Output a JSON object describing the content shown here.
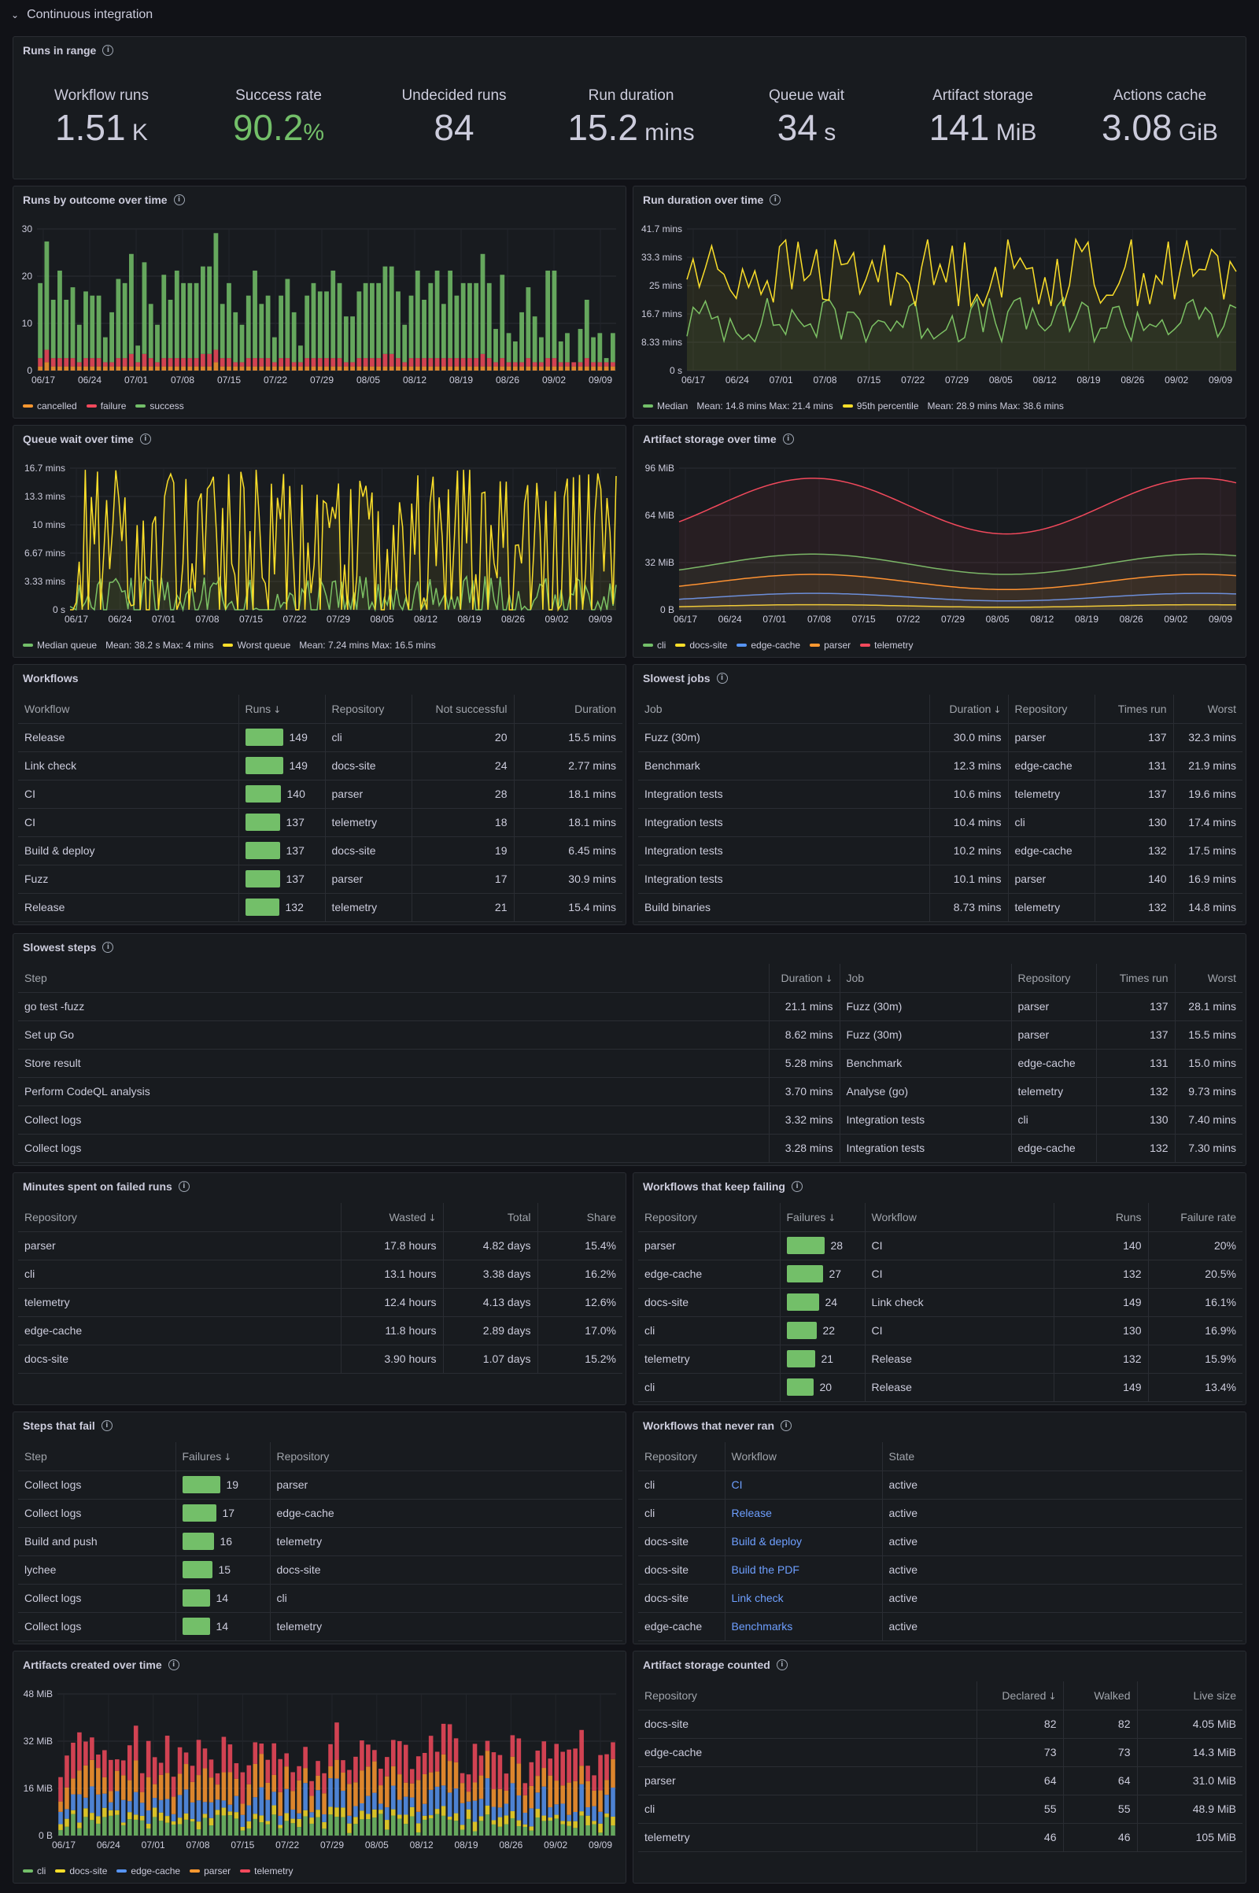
{
  "row": {
    "title": "Continuous integration"
  },
  "runs_in_range": {
    "title": "Runs in range",
    "stats": [
      {
        "label": "Workflow runs",
        "value": "1.51",
        "unit": "K",
        "color": "#ccccdc"
      },
      {
        "label": "Success rate",
        "value": "90.2",
        "unit": "%",
        "color": "#73bf69"
      },
      {
        "label": "Undecided runs",
        "value": "84",
        "unit": "",
        "color": "#ccccdc"
      },
      {
        "label": "Run duration",
        "value": "15.2",
        "unit": "mins",
        "color": "#ccccdc"
      },
      {
        "label": "Queue wait",
        "value": "34",
        "unit": "s",
        "color": "#ccccdc"
      },
      {
        "label": "Artifact storage",
        "value": "141",
        "unit": "MiB",
        "color": "#ccccdc"
      },
      {
        "label": "Actions cache",
        "value": "3.08",
        "unit": "GiB",
        "color": "#ccccdc"
      }
    ]
  },
  "x_dates": [
    "06/17",
    "06/24",
    "07/01",
    "07/08",
    "07/15",
    "07/22",
    "07/29",
    "08/05",
    "08/12",
    "08/19",
    "08/26",
    "09/02",
    "09/09"
  ],
  "chart_data": [
    {
      "id": "runs_by_outcome",
      "title": "Runs by outcome over time",
      "type": "bar",
      "stacked": true,
      "x_ticks": [
        "06/17",
        "06/24",
        "07/01",
        "07/08",
        "07/15",
        "07/22",
        "07/29",
        "08/05",
        "08/12",
        "08/19",
        "08/26",
        "09/02",
        "09/09"
      ],
      "y_ticks": [
        "0",
        "10",
        "20",
        "30"
      ],
      "ylim": [
        0,
        35
      ],
      "series": [
        {
          "name": "cancelled",
          "color": "#ff9830"
        },
        {
          "name": "failure",
          "color": "#f2495c"
        },
        {
          "name": "success",
          "color": "#73bf69"
        }
      ],
      "totals": [
        21,
        31,
        17,
        24,
        17,
        20,
        11,
        19,
        18,
        18,
        8,
        14,
        22,
        21,
        28,
        6,
        26,
        16,
        11,
        23,
        17,
        24,
        21,
        21,
        21,
        25,
        25,
        33,
        16,
        21,
        14,
        11,
        18,
        24,
        16,
        18,
        8,
        18,
        22,
        14,
        6,
        18,
        21,
        19,
        19,
        24,
        21,
        13,
        13,
        19,
        21,
        21,
        21,
        25,
        25,
        19,
        11,
        18,
        24,
        17,
        21,
        24,
        16,
        24,
        18,
        21,
        21,
        21,
        28,
        21,
        10,
        23,
        9,
        7,
        14,
        20,
        13,
        8,
        24,
        24,
        7,
        9,
        2,
        10,
        17,
        8,
        9,
        3,
        9
      ],
      "failure_share": 0.1,
      "cancel_share": 0.05
    },
    {
      "id": "run_duration",
      "title": "Run duration over time",
      "type": "line",
      "x_ticks": [
        "06/17",
        "06/24",
        "07/01",
        "07/08",
        "07/15",
        "07/22",
        "07/29",
        "08/05",
        "08/12",
        "08/19",
        "08/26",
        "09/02",
        "09/09"
      ],
      "y_ticks": [
        "0 s",
        "8.33 mins",
        "16.7 mins",
        "25 mins",
        "33.3 mins",
        "41.7 mins"
      ],
      "ylim": [
        0,
        41.7
      ],
      "series": [
        {
          "name": "Median",
          "color": "#73bf69",
          "stats": "Mean: 14.8 mins   Max: 21.4 mins",
          "mean": 14.8,
          "min": 8.5,
          "max": 21.4
        },
        {
          "name": "95th percentile",
          "color": "#fade2a",
          "stats": "Mean: 28.9 mins   Max: 38.6 mins",
          "mean": 28.9,
          "min": 19,
          "max": 38.6
        }
      ]
    },
    {
      "id": "queue_wait",
      "title": "Queue wait over time",
      "type": "line",
      "x_ticks": [
        "06/17",
        "06/24",
        "07/01",
        "07/08",
        "07/15",
        "07/22",
        "07/29",
        "08/05",
        "08/12",
        "08/19",
        "08/26",
        "09/02",
        "09/09"
      ],
      "y_ticks": [
        "0 s",
        "3.33 mins",
        "6.67 mins",
        "10 mins",
        "13.3 mins",
        "16.7 mins"
      ],
      "ylim": [
        0,
        16.7
      ],
      "series": [
        {
          "name": "Median queue",
          "color": "#73bf69",
          "stats": "Mean: 38.2 s   Max: 4 mins",
          "mean": 0.64,
          "min": 0,
          "max": 4
        },
        {
          "name": "Worst queue",
          "color": "#fade2a",
          "stats": "Mean: 7.24 mins   Max: 16.5 mins",
          "mean": 7.24,
          "min": 0,
          "max": 16.5
        }
      ]
    },
    {
      "id": "artifact_storage",
      "title": "Artifact storage over time",
      "type": "line",
      "x_ticks": [
        "06/17",
        "06/24",
        "07/01",
        "07/08",
        "07/15",
        "07/22",
        "07/29",
        "08/05",
        "08/12",
        "08/19",
        "08/26",
        "09/02",
        "09/09"
      ],
      "y_ticks": [
        "0 B",
        "32 MiB",
        "64 MiB",
        "96 MiB"
      ],
      "ylim": [
        0,
        112
      ],
      "series": [
        {
          "name": "cli",
          "color": "#73bf69",
          "base": 36,
          "amp": 8
        },
        {
          "name": "docs-site",
          "color": "#fade2a",
          "base": 3,
          "amp": 1
        },
        {
          "name": "edge-cache",
          "color": "#5794f2",
          "base": 10,
          "amp": 3
        },
        {
          "name": "parser",
          "color": "#ff9830",
          "base": 22,
          "amp": 6
        },
        {
          "name": "telemetry",
          "color": "#f2495c",
          "base": 82,
          "amp": 22
        }
      ]
    },
    {
      "id": "artifacts_created",
      "title": "Artifacts created over time",
      "type": "bar",
      "stacked": true,
      "x_ticks": [
        "06/17",
        "06/24",
        "07/01",
        "07/08",
        "07/15",
        "07/22",
        "07/29",
        "08/05",
        "08/12",
        "08/19",
        "08/26",
        "09/02",
        "09/09"
      ],
      "y_ticks": [
        "0 B",
        "16 MiB",
        "32 MiB",
        "48 MiB"
      ],
      "ylim": [
        0,
        58
      ],
      "series": [
        {
          "name": "cli",
          "color": "#73bf69"
        },
        {
          "name": "docs-site",
          "color": "#fade2a"
        },
        {
          "name": "edge-cache",
          "color": "#5794f2"
        },
        {
          "name": "parser",
          "color": "#ff9830"
        },
        {
          "name": "telemetry",
          "color": "#f2495c"
        }
      ]
    }
  ],
  "workflows": {
    "title": "Workflows",
    "columns": [
      "Workflow",
      "Runs",
      "Repository",
      "Not successful",
      "Duration"
    ],
    "rows": [
      {
        "workflow": "Release",
        "runs": 149,
        "repo": "cli",
        "not_successful": "20",
        "duration": "15.5 mins"
      },
      {
        "workflow": "Link check",
        "runs": 149,
        "repo": "docs-site",
        "not_successful": "24",
        "duration": "2.77 mins"
      },
      {
        "workflow": "CI",
        "runs": 140,
        "repo": "parser",
        "not_successful": "28",
        "duration": "18.1 mins"
      },
      {
        "workflow": "CI",
        "runs": 137,
        "repo": "telemetry",
        "not_successful": "18",
        "duration": "18.1 mins"
      },
      {
        "workflow": "Build & deploy",
        "runs": 137,
        "repo": "docs-site",
        "not_successful": "19",
        "duration": "6.45 mins"
      },
      {
        "workflow": "Fuzz",
        "runs": 137,
        "repo": "parser",
        "not_successful": "17",
        "duration": "30.9 mins"
      },
      {
        "workflow": "Release",
        "runs": 132,
        "repo": "telemetry",
        "not_successful": "21",
        "duration": "15.4 mins"
      }
    ]
  },
  "slowest_jobs": {
    "title": "Slowest jobs",
    "columns": [
      "Job",
      "Duration",
      "Repository",
      "Times run",
      "Worst"
    ],
    "rows": [
      [
        "Fuzz (30m)",
        "30.0 mins",
        "parser",
        "137",
        "32.3 mins"
      ],
      [
        "Benchmark",
        "12.3 mins",
        "edge-cache",
        "131",
        "21.9 mins"
      ],
      [
        "Integration tests",
        "10.6 mins",
        "telemetry",
        "137",
        "19.6 mins"
      ],
      [
        "Integration tests",
        "10.4 mins",
        "cli",
        "130",
        "17.4 mins"
      ],
      [
        "Integration tests",
        "10.2 mins",
        "edge-cache",
        "132",
        "17.5 mins"
      ],
      [
        "Integration tests",
        "10.1 mins",
        "parser",
        "140",
        "16.9 mins"
      ],
      [
        "Build binaries",
        "8.73 mins",
        "telemetry",
        "132",
        "14.8 mins"
      ]
    ]
  },
  "slowest_steps": {
    "title": "Slowest steps",
    "columns": [
      "Step",
      "Duration",
      "Job",
      "Repository",
      "Times run",
      "Worst"
    ],
    "rows": [
      [
        "go test -fuzz",
        "21.1 mins",
        "Fuzz (30m)",
        "parser",
        "137",
        "28.1 mins"
      ],
      [
        "Set up Go",
        "8.62 mins",
        "Fuzz (30m)",
        "parser",
        "137",
        "15.5 mins"
      ],
      [
        "Store result",
        "5.28 mins",
        "Benchmark",
        "edge-cache",
        "131",
        "15.0 mins"
      ],
      [
        "Perform CodeQL analysis",
        "3.70 mins",
        "Analyse (go)",
        "telemetry",
        "132",
        "9.73 mins"
      ],
      [
        "Collect logs",
        "3.32 mins",
        "Integration tests",
        "cli",
        "130",
        "7.40 mins"
      ],
      [
        "Collect logs",
        "3.28 mins",
        "Integration tests",
        "edge-cache",
        "132",
        "7.30 mins"
      ]
    ]
  },
  "minutes_failed": {
    "title": "Minutes spent on failed runs",
    "columns": [
      "Repository",
      "Wasted",
      "Total",
      "Share"
    ],
    "rows": [
      [
        "parser",
        "17.8 hours",
        "4.82 days",
        "15.4%"
      ],
      [
        "cli",
        "13.1 hours",
        "3.38 days",
        "16.2%"
      ],
      [
        "telemetry",
        "12.4 hours",
        "4.13 days",
        "12.6%"
      ],
      [
        "edge-cache",
        "11.8 hours",
        "2.89 days",
        "17.0%"
      ],
      [
        "docs-site",
        "3.90 hours",
        "1.07 days",
        "15.2%"
      ]
    ]
  },
  "keep_failing": {
    "title": "Workflows that keep failing",
    "columns": [
      "Repository",
      "Failures",
      "Workflow",
      "Runs",
      "Failure rate"
    ],
    "rows": [
      {
        "repo": "parser",
        "failures": 28,
        "workflow": "CI",
        "runs": "140",
        "rate": "20%"
      },
      {
        "repo": "edge-cache",
        "failures": 27,
        "workflow": "CI",
        "runs": "132",
        "rate": "20.5%"
      },
      {
        "repo": "docs-site",
        "failures": 24,
        "workflow": "Link check",
        "runs": "149",
        "rate": "16.1%"
      },
      {
        "repo": "cli",
        "failures": 22,
        "workflow": "CI",
        "runs": "130",
        "rate": "16.9%"
      },
      {
        "repo": "telemetry",
        "failures": 21,
        "workflow": "Release",
        "runs": "132",
        "rate": "15.9%"
      },
      {
        "repo": "cli",
        "failures": 20,
        "workflow": "Release",
        "runs": "149",
        "rate": "13.4%"
      }
    ]
  },
  "steps_fail": {
    "title": "Steps that fail",
    "columns": [
      "Step",
      "Failures",
      "Repository"
    ],
    "rows": [
      {
        "step": "Collect logs",
        "failures": 19,
        "repo": "parser"
      },
      {
        "step": "Collect logs",
        "failures": 17,
        "repo": "edge-cache"
      },
      {
        "step": "Build and push",
        "failures": 16,
        "repo": "telemetry"
      },
      {
        "step": "lychee",
        "failures": 15,
        "repo": "docs-site"
      },
      {
        "step": "Collect logs",
        "failures": 14,
        "repo": "cli"
      },
      {
        "step": "Collect logs",
        "failures": 14,
        "repo": "telemetry"
      }
    ]
  },
  "never_ran": {
    "title": "Workflows that never ran",
    "columns": [
      "Repository",
      "Workflow",
      "State"
    ],
    "rows": [
      [
        "cli",
        "CI",
        "active"
      ],
      [
        "cli",
        "Release",
        "active"
      ],
      [
        "docs-site",
        "Build & deploy",
        "active"
      ],
      [
        "docs-site",
        "Build the PDF",
        "active"
      ],
      [
        "docs-site",
        "Link check",
        "active"
      ],
      [
        "edge-cache",
        "Benchmarks",
        "active"
      ]
    ]
  },
  "storage_counted": {
    "title": "Artifact storage counted",
    "columns": [
      "Repository",
      "Declared",
      "Walked",
      "Live size"
    ],
    "rows": [
      [
        "docs-site",
        "82",
        "82",
        "4.05 MiB"
      ],
      [
        "edge-cache",
        "73",
        "73",
        "14.3 MiB"
      ],
      [
        "parser",
        "64",
        "64",
        "31.0 MiB"
      ],
      [
        "cli",
        "55",
        "55",
        "48.9 MiB"
      ],
      [
        "telemetry",
        "46",
        "46",
        "105 MiB"
      ]
    ]
  },
  "icons": {
    "info": "i",
    "chevron": "⌄",
    "sort_down": "↓"
  }
}
